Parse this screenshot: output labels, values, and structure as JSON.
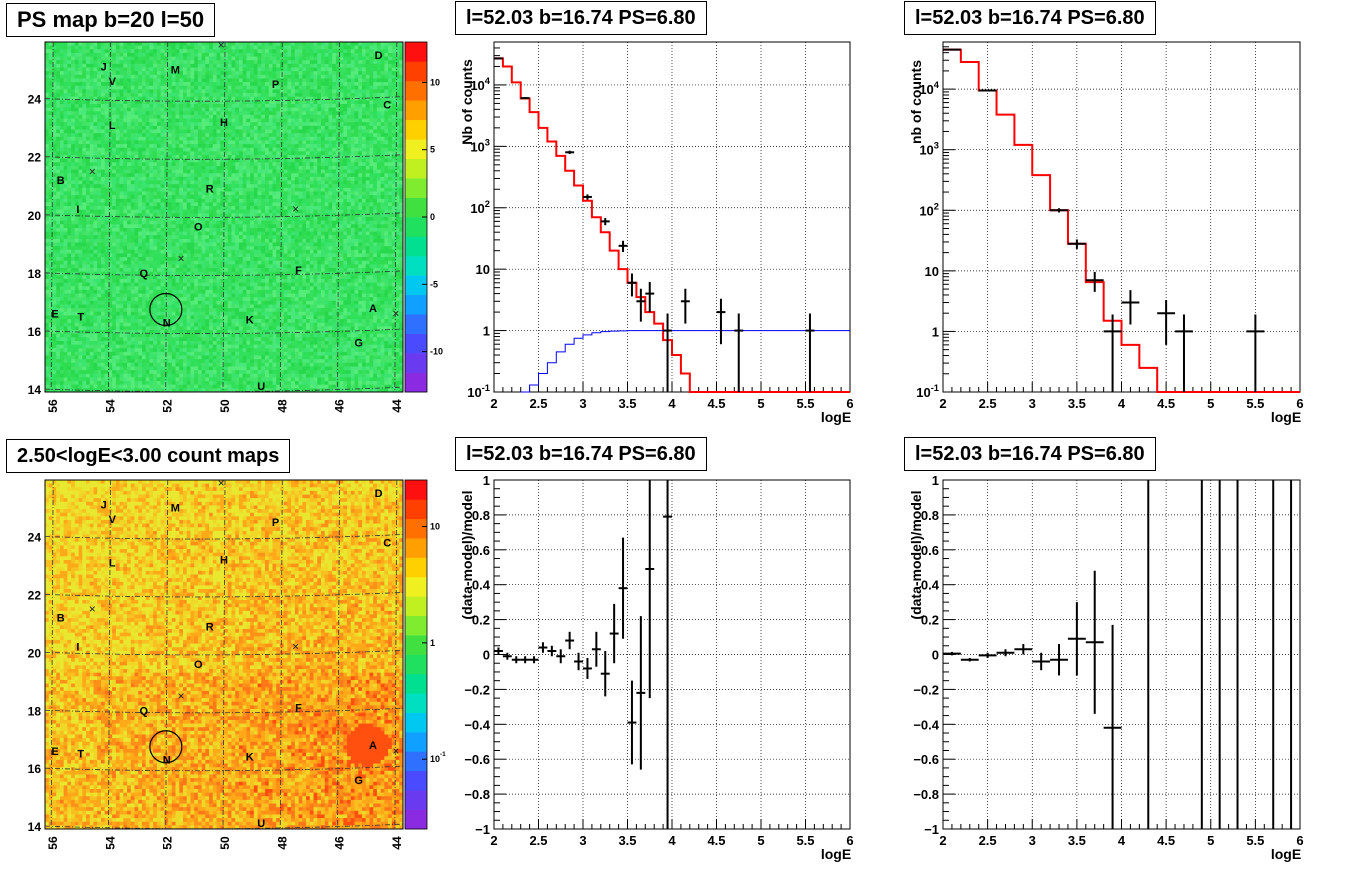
{
  "chart_data": [
    {
      "type": "heatmap",
      "title": "PS map b=20 l=50",
      "x_ticks": [
        "56",
        "54",
        "52",
        "50",
        "48",
        "46",
        "44"
      ],
      "y_ticks": [
        "14",
        "16",
        "18",
        "20",
        "22",
        "24"
      ],
      "colorbar_ticks": [
        "10",
        "5",
        "0",
        "-5",
        "-10"
      ],
      "colorscale": "linear",
      "source_labels": [
        {
          "label": "D",
          "l": 44.6,
          "b": 25.5
        },
        {
          "label": "J",
          "l": 54.2,
          "b": 25.1
        },
        {
          "label": "M",
          "l": 51.7,
          "b": 25.0
        },
        {
          "label": "V",
          "l": 53.9,
          "b": 24.6
        },
        {
          "label": "P",
          "l": 48.2,
          "b": 24.5
        },
        {
          "label": "C",
          "l": 44.3,
          "b": 23.8
        },
        {
          "label": "L",
          "l": 53.9,
          "b": 23.1
        },
        {
          "label": "H",
          "l": 50.0,
          "b": 23.2
        },
        {
          "label": "B",
          "l": 55.7,
          "b": 21.2
        },
        {
          "label": "R",
          "l": 50.5,
          "b": 20.9
        },
        {
          "label": "I",
          "l": 55.1,
          "b": 20.2
        },
        {
          "label": "O",
          "l": 50.9,
          "b": 19.6
        },
        {
          "label": "Q",
          "l": 52.8,
          "b": 18.0
        },
        {
          "label": "F",
          "l": 47.4,
          "b": 18.1
        },
        {
          "label": "E",
          "l": 55.9,
          "b": 16.6
        },
        {
          "label": "T",
          "l": 55.0,
          "b": 16.5
        },
        {
          "label": "N",
          "l": 52.0,
          "b": 16.3
        },
        {
          "label": "K",
          "l": 49.1,
          "b": 16.4
        },
        {
          "label": "A",
          "l": 44.8,
          "b": 16.8
        },
        {
          "label": "G",
          "l": 45.3,
          "b": 15.6
        },
        {
          "label": "U",
          "l": 48.7,
          "b": 14.1
        }
      ],
      "crosses": [
        {
          "l": 50.1,
          "b": 25.85
        },
        {
          "l": 54.6,
          "b": 21.5
        },
        {
          "l": 47.5,
          "b": 20.2
        },
        {
          "l": 51.5,
          "b": 18.5
        },
        {
          "l": 44.0,
          "b": 16.6
        }
      ],
      "circle": {
        "l": 52.03,
        "b": 16.74
      }
    },
    {
      "type": "line",
      "title": "l=52.03 b=16.74 PS=6.80",
      "xlabel": "logE",
      "ylabel": "Nb of counts",
      "xlim": [
        2,
        6
      ],
      "ylim": [
        0.1,
        50000
      ],
      "yscale": "log",
      "x_ticks": [
        "2",
        "2.5",
        "3",
        "3.5",
        "4",
        "4.5",
        "5",
        "5.5",
        "6"
      ],
      "y_ticks": [
        "10^-1",
        "1",
        "10",
        "10^2",
        "10^3",
        "10^4"
      ],
      "grid": true,
      "series": [
        {
          "style": "histogram",
          "color": "#ff0000",
          "edges": [
            2.0,
            2.1,
            2.2,
            2.3,
            2.4,
            2.5,
            2.6,
            2.7,
            2.8,
            2.9,
            3.0,
            3.1,
            3.2,
            3.3,
            3.4,
            3.5,
            3.6,
            3.7,
            3.8,
            3.9,
            4.0,
            4.1,
            4.2,
            6.0
          ],
          "values": [
            27000,
            20000,
            11000,
            6000,
            3600,
            2000,
            1200,
            700,
            400,
            230,
            130,
            70,
            40,
            20,
            10,
            6,
            3.5,
            2,
            1.3,
            0.7,
            0.4,
            0.2,
            0.1
          ]
        },
        {
          "style": "histogram",
          "color": "#0000ff",
          "edges": [
            2.3,
            2.4,
            2.5,
            2.6,
            2.7,
            2.8,
            2.9,
            3.0,
            3.1,
            3.2,
            3.3,
            3.4,
            3.5,
            6.0
          ],
          "values": [
            0.1,
            0.13,
            0.2,
            0.3,
            0.45,
            0.6,
            0.75,
            0.85,
            0.92,
            0.96,
            0.98,
            0.99,
            1.0
          ]
        },
        {
          "style": "errorbar",
          "color": "#000000",
          "points": [
            {
              "x": 2.05,
              "y": 27000,
              "xerr": 0.05,
              "lo": 26500,
              "hi": 27500
            },
            {
              "x": 2.35,
              "y": 6100,
              "xerr": 0.05,
              "lo": 5900,
              "hi": 6300
            },
            {
              "x": 2.85,
              "y": 800,
              "xerr": 0.05,
              "lo": 750,
              "hi": 850
            },
            {
              "x": 3.05,
              "y": 150,
              "xerr": 0.05,
              "lo": 135,
              "hi": 165
            },
            {
              "x": 3.25,
              "y": 60,
              "xerr": 0.05,
              "lo": 52,
              "hi": 68
            },
            {
              "x": 3.45,
              "y": 24,
              "xerr": 0.05,
              "lo": 19,
              "hi": 29
            },
            {
              "x": 3.55,
              "y": 6,
              "xerr": 0.05,
              "lo": 3.6,
              "hi": 8.5
            },
            {
              "x": 3.65,
              "y": 3,
              "xerr": 0.05,
              "lo": 1.4,
              "hi": 4.8
            },
            {
              "x": 3.75,
              "y": 4,
              "xerr": 0.05,
              "lo": 2.0,
              "hi": 6.2
            },
            {
              "x": 3.95,
              "y": 1,
              "xerr": 0.05,
              "lo": 0.1,
              "hi": 1.9
            },
            {
              "x": 4.15,
              "y": 3,
              "xerr": 0.05,
              "lo": 1.3,
              "hi": 4.8
            },
            {
              "x": 4.55,
              "y": 2,
              "xerr": 0.05,
              "lo": 0.6,
              "hi": 3.3
            },
            {
              "x": 4.75,
              "y": 1,
              "xerr": 0.05,
              "lo": 0.1,
              "hi": 1.9
            },
            {
              "x": 5.55,
              "y": 1,
              "xerr": 0.05,
              "lo": 0.1,
              "hi": 1.9
            }
          ]
        }
      ]
    },
    {
      "type": "line",
      "title": "l=52.03 b=16.74 PS=6.80",
      "xlabel": "logE",
      "ylabel": "nb of counts",
      "xlim": [
        2,
        6
      ],
      "ylim": [
        0.1,
        60000
      ],
      "yscale": "log",
      "x_ticks": [
        "2",
        "2.5",
        "3",
        "3.5",
        "4",
        "4.5",
        "5",
        "5.5",
        "6"
      ],
      "y_ticks": [
        "10^-1",
        "1",
        "10",
        "10^2",
        "10^3",
        "10^4"
      ],
      "grid": true,
      "series": [
        {
          "style": "histogram",
          "color": "#ff0000",
          "edges": [
            2.0,
            2.2,
            2.4,
            2.6,
            2.8,
            3.0,
            3.2,
            3.4,
            3.6,
            3.8,
            4.0,
            4.2,
            4.4,
            6.0
          ],
          "values": [
            45000,
            28000,
            9500,
            3800,
            1200,
            380,
            100,
            28,
            6.5,
            1.5,
            0.6,
            0.25,
            0.1
          ]
        },
        {
          "style": "errorbar",
          "color": "#000000",
          "points": [
            {
              "x": 2.1,
              "y": 45000,
              "xerr": 0.1,
              "lo": 44500,
              "hi": 45500
            },
            {
              "x": 2.5,
              "y": 9500,
              "xerr": 0.1,
              "lo": 9300,
              "hi": 9700
            },
            {
              "x": 3.3,
              "y": 100,
              "xerr": 0.1,
              "lo": 92,
              "hi": 108
            },
            {
              "x": 3.5,
              "y": 28,
              "xerr": 0.1,
              "lo": 23,
              "hi": 33
            },
            {
              "x": 3.7,
              "y": 7,
              "xerr": 0.1,
              "lo": 4.5,
              "hi": 9.6
            },
            {
              "x": 3.9,
              "y": 1,
              "xerr": 0.1,
              "lo": 0.1,
              "hi": 1.9
            },
            {
              "x": 4.1,
              "y": 3,
              "xerr": 0.1,
              "lo": 1.3,
              "hi": 4.8
            },
            {
              "x": 4.5,
              "y": 2,
              "xerr": 0.1,
              "lo": 0.6,
              "hi": 3.3
            },
            {
              "x": 4.7,
              "y": 1,
              "xerr": 0.1,
              "lo": 0.1,
              "hi": 1.9
            },
            {
              "x": 5.5,
              "y": 1,
              "xerr": 0.1,
              "lo": 0.1,
              "hi": 1.9
            }
          ]
        }
      ]
    },
    {
      "type": "heatmap",
      "title": "2.50<logE<3.00 count maps",
      "x_ticks": [
        "56",
        "54",
        "52",
        "50",
        "48",
        "46",
        "44"
      ],
      "y_ticks": [
        "14",
        "16",
        "18",
        "20",
        "22",
        "24"
      ],
      "colorbar_ticks": [
        "10",
        "1",
        "10^-1"
      ],
      "colorscale": "log",
      "source_labels": [
        {
          "label": "D",
          "l": 44.6,
          "b": 25.5
        },
        {
          "label": "J",
          "l": 54.2,
          "b": 25.1
        },
        {
          "label": "M",
          "l": 51.7,
          "b": 25.0
        },
        {
          "label": "V",
          "l": 53.9,
          "b": 24.6
        },
        {
          "label": "P",
          "l": 48.2,
          "b": 24.5
        },
        {
          "label": "C",
          "l": 44.3,
          "b": 23.8
        },
        {
          "label": "L",
          "l": 53.9,
          "b": 23.1
        },
        {
          "label": "H",
          "l": 50.0,
          "b": 23.2
        },
        {
          "label": "B",
          "l": 55.7,
          "b": 21.2
        },
        {
          "label": "R",
          "l": 50.5,
          "b": 20.9
        },
        {
          "label": "I",
          "l": 55.1,
          "b": 20.2
        },
        {
          "label": "O",
          "l": 50.9,
          "b": 19.6
        },
        {
          "label": "Q",
          "l": 52.8,
          "b": 18.0
        },
        {
          "label": "F",
          "l": 47.4,
          "b": 18.1
        },
        {
          "label": "E",
          "l": 55.9,
          "b": 16.6
        },
        {
          "label": "T",
          "l": 55.0,
          "b": 16.5
        },
        {
          "label": "N",
          "l": 52.0,
          "b": 16.3
        },
        {
          "label": "K",
          "l": 49.1,
          "b": 16.4
        },
        {
          "label": "A",
          "l": 44.8,
          "b": 16.8
        },
        {
          "label": "G",
          "l": 45.3,
          "b": 15.6
        },
        {
          "label": "U",
          "l": 48.7,
          "b": 14.1
        }
      ],
      "crosses": [
        {
          "l": 50.1,
          "b": 25.85
        },
        {
          "l": 54.6,
          "b": 21.5
        },
        {
          "l": 47.5,
          "b": 20.2
        },
        {
          "l": 51.5,
          "b": 18.5
        },
        {
          "l": 44.0,
          "b": 16.6
        }
      ],
      "circle": {
        "l": 52.03,
        "b": 16.74
      }
    },
    {
      "type": "scatter",
      "title": "l=52.03 b=16.74 PS=6.80",
      "xlabel": "logE",
      "ylabel": "(data-model)/model",
      "xlim": [
        2,
        6
      ],
      "ylim": [
        -1,
        1
      ],
      "x_ticks": [
        "2",
        "2.5",
        "3",
        "3.5",
        "4",
        "4.5",
        "5",
        "5.5",
        "6"
      ],
      "y_ticks": [
        "−1",
        "−0.8",
        "−0.6",
        "−0.4",
        "−0.2",
        "0",
        "0.2",
        "0.4",
        "0.6",
        "0.8",
        "1"
      ],
      "grid": true,
      "points": [
        {
          "x": 2.05,
          "y": 0.02,
          "xerr": 0.05,
          "yerr": 0.02
        },
        {
          "x": 2.15,
          "y": -0.01,
          "xerr": 0.05,
          "yerr": 0.02
        },
        {
          "x": 2.25,
          "y": -0.03,
          "xerr": 0.05,
          "yerr": 0.02
        },
        {
          "x": 2.35,
          "y": -0.03,
          "xerr": 0.05,
          "yerr": 0.02
        },
        {
          "x": 2.45,
          "y": -0.03,
          "xerr": 0.05,
          "yerr": 0.02
        },
        {
          "x": 2.55,
          "y": 0.04,
          "xerr": 0.05,
          "yerr": 0.03
        },
        {
          "x": 2.65,
          "y": 0.02,
          "xerr": 0.05,
          "yerr": 0.03
        },
        {
          "x": 2.75,
          "y": -0.01,
          "xerr": 0.05,
          "yerr": 0.04
        },
        {
          "x": 2.85,
          "y": 0.08,
          "xerr": 0.05,
          "yerr": 0.05
        },
        {
          "x": 2.95,
          "y": -0.04,
          "xerr": 0.05,
          "yerr": 0.05
        },
        {
          "x": 3.05,
          "y": -0.08,
          "xerr": 0.05,
          "yerr": 0.06
        },
        {
          "x": 3.15,
          "y": 0.03,
          "xerr": 0.05,
          "yerr": 0.1
        },
        {
          "x": 3.25,
          "y": -0.11,
          "xerr": 0.05,
          "yerr": 0.13
        },
        {
          "x": 3.35,
          "y": 0.12,
          "xerr": 0.05,
          "yerr": 0.17
        },
        {
          "x": 3.45,
          "y": 0.38,
          "xerr": 0.05,
          "yerr": 0.29
        },
        {
          "x": 3.55,
          "y": -0.39,
          "xerr": 0.05,
          "yerr": 0.24
        },
        {
          "x": 3.65,
          "y": -0.22,
          "xerr": 0.05,
          "yerr": 0.44
        },
        {
          "x": 3.75,
          "y": 0.49,
          "xerr": 0.05,
          "yerr": 0.74
        },
        {
          "x": 3.95,
          "y": 0.79,
          "xerr": 0.05,
          "yerr": 1.8
        }
      ]
    },
    {
      "type": "scatter",
      "title": "l=52.03 b=16.74 PS=6.80",
      "xlabel": "logE",
      "ylabel": "(data-model)/model",
      "xlim": [
        2,
        6
      ],
      "ylim": [
        -1,
        1
      ],
      "x_ticks": [
        "2",
        "2.5",
        "3",
        "3.5",
        "4",
        "4.5",
        "5",
        "5.5",
        "6"
      ],
      "y_ticks": [
        "−1",
        "−0.8",
        "−0.6",
        "−0.4",
        "−0.2",
        "0",
        "0.2",
        "0.4",
        "0.6",
        "0.8",
        "1"
      ],
      "grid": true,
      "points": [
        {
          "x": 2.1,
          "y": 0.005,
          "xerr": 0.1,
          "yerr": 0.01
        },
        {
          "x": 2.3,
          "y": -0.03,
          "xerr": 0.1,
          "yerr": 0.01
        },
        {
          "x": 2.5,
          "y": -0.005,
          "xerr": 0.1,
          "yerr": 0.015
        },
        {
          "x": 2.7,
          "y": 0.01,
          "xerr": 0.1,
          "yerr": 0.02
        },
        {
          "x": 2.9,
          "y": 0.03,
          "xerr": 0.1,
          "yerr": 0.03
        },
        {
          "x": 3.1,
          "y": -0.04,
          "xerr": 0.1,
          "yerr": 0.05
        },
        {
          "x": 3.3,
          "y": -0.03,
          "xerr": 0.1,
          "yerr": 0.09
        },
        {
          "x": 3.5,
          "y": 0.09,
          "xerr": 0.1,
          "yerr": 0.21
        },
        {
          "x": 3.7,
          "y": 0.07,
          "xerr": 0.1,
          "yerr": 0.41
        },
        {
          "x": 3.9,
          "y": -0.42,
          "xerr": 0.1,
          "yerr": 0.59
        },
        {
          "x": 4.3,
          "y": 0.0,
          "xerr": 0.0,
          "yerr": 1.2
        },
        {
          "x": 4.9,
          "y": 0.0,
          "xerr": 0.0,
          "yerr": 1.2
        },
        {
          "x": 5.1,
          "y": 0.0,
          "xerr": 0.0,
          "yerr": 1.2
        },
        {
          "x": 5.3,
          "y": 0.0,
          "xerr": 0.0,
          "yerr": 1.2
        },
        {
          "x": 5.7,
          "y": 0.0,
          "xerr": 0.0,
          "yerr": 1.2
        },
        {
          "x": 5.9,
          "y": 0.0,
          "xerr": 0.0,
          "yerr": 1.2
        }
      ]
    }
  ]
}
